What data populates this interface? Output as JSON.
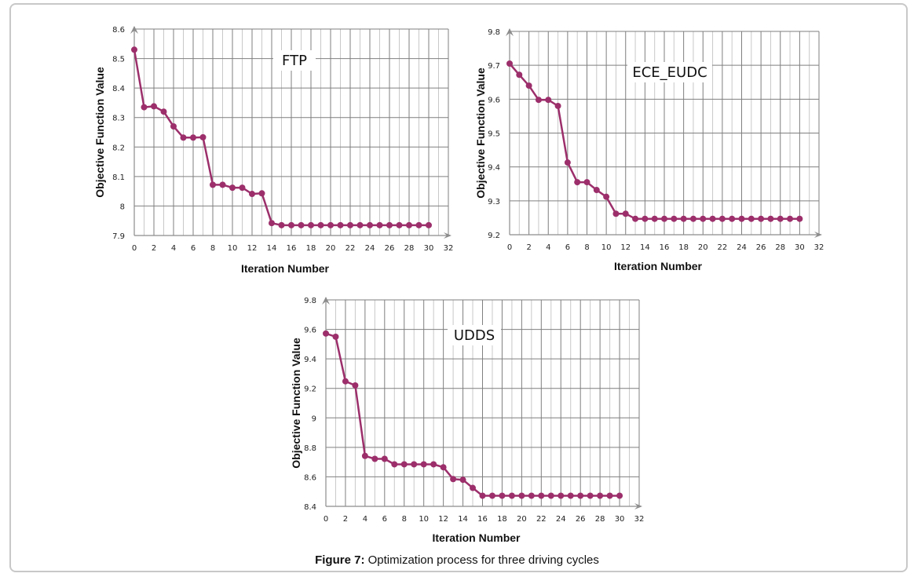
{
  "figure": {
    "caption_prefix": "Figure 7:",
    "caption_text": " Optimization process for three driving cycles"
  },
  "colors": {
    "series": "#9c2f6b",
    "grid_major": "#7f7f7f",
    "grid_minor": "#c8c8c8",
    "axis_arrow": "#8c8c8c"
  },
  "chart_data": [
    {
      "type": "line",
      "title": "FTP",
      "xlabel": "Iteration Number",
      "ylabel": "Objective Function Value",
      "xlim": [
        0,
        32
      ],
      "ylim": [
        7.9,
        8.6
      ],
      "xticks": [
        "0",
        "2",
        "4",
        "6",
        "8",
        "10",
        "12",
        "14",
        "16",
        "18",
        "20",
        "22",
        "24",
        "26",
        "28",
        "30",
        "32"
      ],
      "yticks": [
        "7.9",
        "8",
        "8.1",
        "8.2",
        "8.3",
        "8.4",
        "8.5",
        "8.6"
      ],
      "grid": true,
      "series": [
        {
          "name": "FTP",
          "x": [
            0,
            1,
            2,
            3,
            4,
            5,
            6,
            7,
            8,
            9,
            10,
            11,
            12,
            13,
            14,
            15,
            16,
            17,
            18,
            19,
            20,
            21,
            22,
            23,
            24,
            25,
            26,
            27,
            28,
            29,
            30
          ],
          "y": [
            8.53,
            8.335,
            8.338,
            8.32,
            8.27,
            8.232,
            8.232,
            8.233,
            8.072,
            8.072,
            8.062,
            8.062,
            8.041,
            8.043,
            7.942,
            7.935,
            7.935,
            7.935,
            7.935,
            7.935,
            7.935,
            7.935,
            7.935,
            7.935,
            7.935,
            7.935,
            7.935,
            7.935,
            7.935,
            7.935,
            7.935
          ]
        }
      ]
    },
    {
      "type": "line",
      "title": "ECE_EUDC",
      "xlabel": "Iteration Number",
      "ylabel": "Objective Function Value",
      "xlim": [
        0,
        32
      ],
      "ylim": [
        9.2,
        9.8
      ],
      "xticks": [
        "0",
        "2",
        "4",
        "6",
        "8",
        "10",
        "12",
        "14",
        "16",
        "18",
        "20",
        "22",
        "24",
        "26",
        "28",
        "30",
        "32"
      ],
      "yticks": [
        "9.2",
        "9.3",
        "9.4",
        "9.5",
        "9.6",
        "9.7",
        "9.8"
      ],
      "grid": true,
      "series": [
        {
          "name": "ECE_EUDC",
          "x": [
            0,
            1,
            2,
            3,
            4,
            5,
            6,
            7,
            8,
            9,
            10,
            11,
            12,
            13,
            14,
            15,
            16,
            17,
            18,
            19,
            20,
            21,
            22,
            23,
            24,
            25,
            26,
            27,
            28,
            29,
            30
          ],
          "y": [
            9.705,
            9.672,
            9.64,
            9.598,
            9.598,
            9.58,
            9.413,
            9.355,
            9.355,
            9.332,
            9.312,
            9.262,
            9.262,
            9.247,
            9.247,
            9.247,
            9.247,
            9.247,
            9.247,
            9.247,
            9.247,
            9.247,
            9.247,
            9.247,
            9.247,
            9.247,
            9.247,
            9.247,
            9.247,
            9.247,
            9.247
          ]
        }
      ]
    },
    {
      "type": "line",
      "title": "UDDS",
      "xlabel": "Iteration Number",
      "ylabel": "Objective Function Value",
      "xlim": [
        0,
        32
      ],
      "ylim": [
        8.4,
        9.8
      ],
      "xticks": [
        "0",
        "2",
        "4",
        "6",
        "8",
        "10",
        "12",
        "14",
        "16",
        "18",
        "20",
        "22",
        "24",
        "26",
        "28",
        "30",
        "32"
      ],
      "yticks": [
        "8.4",
        "8.6",
        "8.8",
        "9",
        "9.2",
        "9.4",
        "9.6",
        "9.8"
      ],
      "grid": true,
      "series": [
        {
          "name": "UDDS",
          "x": [
            0,
            1,
            2,
            3,
            4,
            5,
            6,
            7,
            8,
            9,
            10,
            11,
            12,
            13,
            14,
            15,
            16,
            17,
            18,
            19,
            20,
            21,
            22,
            23,
            24,
            25,
            26,
            27,
            28,
            29,
            30
          ],
          "y": [
            9.572,
            9.55,
            9.248,
            9.22,
            8.742,
            8.722,
            8.722,
            8.685,
            8.685,
            8.685,
            8.685,
            8.685,
            8.665,
            8.585,
            8.58,
            8.525,
            8.472,
            8.472,
            8.472,
            8.472,
            8.472,
            8.472,
            8.472,
            8.472,
            8.472,
            8.472,
            8.472,
            8.472,
            8.472,
            8.472,
            8.472
          ]
        }
      ]
    }
  ]
}
